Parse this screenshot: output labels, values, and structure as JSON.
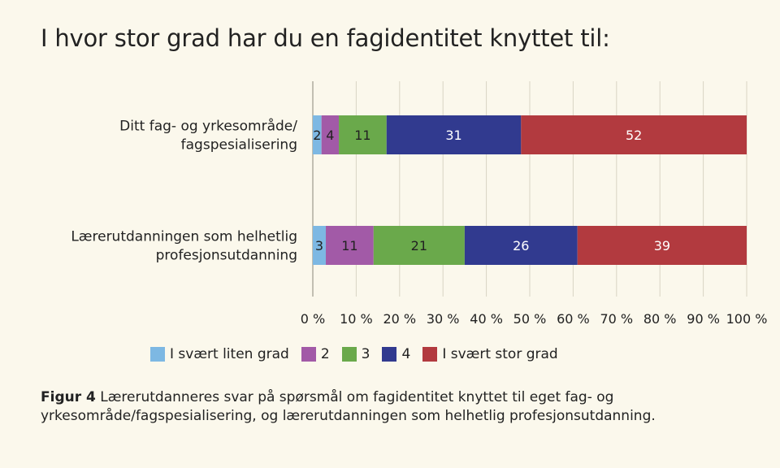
{
  "chart_data": {
    "type": "bar",
    "orientation": "horizontal",
    "stacked": true,
    "title": "I hvor stor grad har du en fagidentitet knyttet til:",
    "categories": [
      [
        "Ditt fag- og yrkesområde/",
        "fagspesialisering"
      ],
      [
        "Lærerutdanningen som helhetlig",
        "profesjonsutdanning"
      ]
    ],
    "series": [
      {
        "name": "I svært liten grad",
        "color": "#7db8e3",
        "values": [
          2,
          3
        ]
      },
      {
        "name": "2",
        "color": "#a25aa7",
        "values": [
          4,
          11
        ]
      },
      {
        "name": "3",
        "color": "#6aa94b",
        "values": [
          11,
          21
        ]
      },
      {
        "name": "4",
        "color": "#313a8f",
        "values": [
          31,
          26
        ]
      },
      {
        "name": "I svært stor grad",
        "color": "#b23a3f",
        "values": [
          52,
          39
        ]
      }
    ],
    "xlim": [
      0,
      100
    ],
    "x_ticks": [
      "0 %",
      "10 %",
      "20 %",
      "30 %",
      "40 %",
      "50 %",
      "60 %",
      "70 %",
      "80 %",
      "90 %",
      "100 %"
    ],
    "grid": true,
    "legend_position": "bottom"
  },
  "caption": {
    "label": "Figur 4",
    "text": " Lærerutdanneres svar på spørsmål om fagidentitet knyttet til eget fag- og yrkesområde/fagspesialisering, og lærerutdanningen som helhetlig profesjonsutdanning."
  }
}
